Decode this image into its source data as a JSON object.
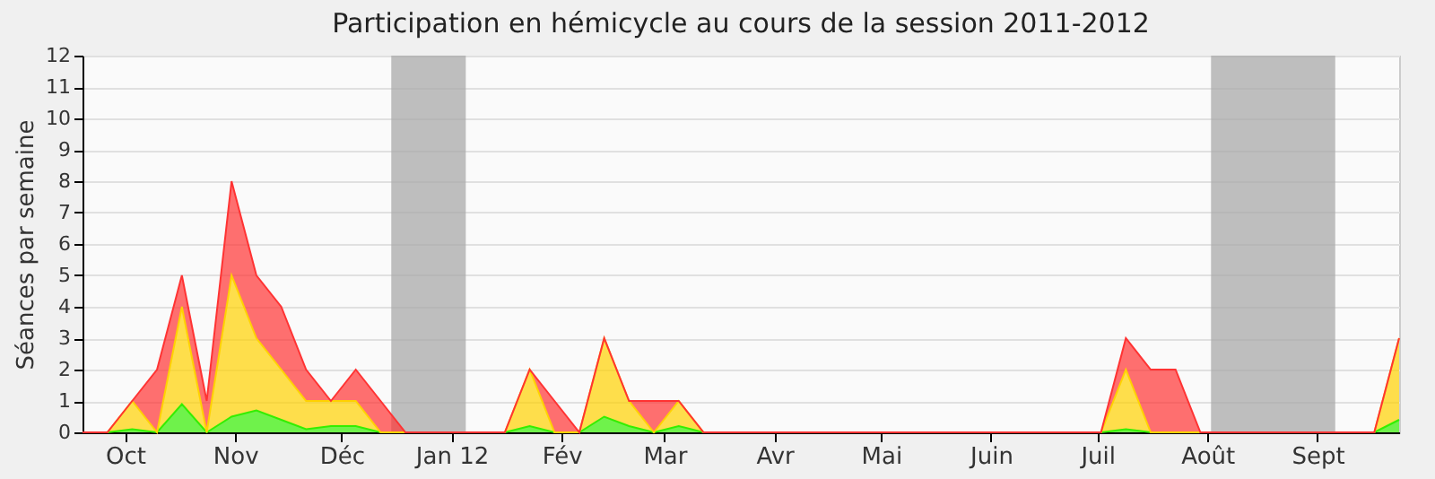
{
  "chart_data": {
    "type": "area",
    "title": "Participation en hémicycle au cours de la session 2011-2012",
    "ylabel": "Séances par semaine",
    "stacked": true,
    "grid": "y",
    "x": [
      "2011-09-19",
      "2011-09-26",
      "2011-10-03",
      "2011-10-10",
      "2011-10-17",
      "2011-10-24",
      "2011-10-31",
      "2011-11-07",
      "2011-11-14",
      "2011-11-21",
      "2011-11-28",
      "2011-12-05",
      "2011-12-12",
      "2011-12-19",
      "2011-12-26",
      "2012-01-02",
      "2012-01-09",
      "2012-01-16",
      "2012-01-23",
      "2012-01-30",
      "2012-02-06",
      "2012-02-13",
      "2012-02-20",
      "2012-02-27",
      "2012-03-05",
      "2012-03-12",
      "2012-03-19",
      "2012-03-26",
      "2012-04-02",
      "2012-04-09",
      "2012-04-16",
      "2012-04-23",
      "2012-04-30",
      "2012-05-07",
      "2012-05-14",
      "2012-05-21",
      "2012-05-28",
      "2012-06-04",
      "2012-06-11",
      "2012-06-18",
      "2012-06-25",
      "2012-07-02",
      "2012-07-09",
      "2012-07-16",
      "2012-07-23",
      "2012-07-30",
      "2012-08-06",
      "2012-08-13",
      "2012-08-20",
      "2012-08-27",
      "2012-09-03",
      "2012-09-10",
      "2012-09-17",
      "2012-09-24"
    ],
    "xlim": [
      "2011-09-19",
      "2012-09-24"
    ],
    "xticks": [
      {
        "value": "2011-10-01",
        "label": "Oct"
      },
      {
        "value": "2011-11-01",
        "label": "Nov"
      },
      {
        "value": "2011-12-01",
        "label": "Déc"
      },
      {
        "value": "2012-01-01",
        "label": "Jan 12"
      },
      {
        "value": "2012-02-01",
        "label": "Fév"
      },
      {
        "value": "2012-03-01",
        "label": "Mar"
      },
      {
        "value": "2012-04-01",
        "label": "Avr"
      },
      {
        "value": "2012-05-01",
        "label": "Mai"
      },
      {
        "value": "2012-06-01",
        "label": "Juin"
      },
      {
        "value": "2012-07-01",
        "label": "Juil"
      },
      {
        "value": "2012-08-01",
        "label": "Août"
      },
      {
        "value": "2012-09-01",
        "label": "Sept"
      }
    ],
    "ylim": [
      0,
      12
    ],
    "yticks": [
      0,
      1,
      2,
      3,
      4,
      5,
      6,
      7,
      8,
      9,
      10,
      11,
      12
    ],
    "bands": [
      {
        "axis": "x",
        "from": "2011-12-15",
        "to": "2012-01-05",
        "color": "#aaaaaa"
      },
      {
        "axis": "x",
        "from": "2012-08-02",
        "to": "2012-09-06",
        "color": "#aaaaaa"
      }
    ],
    "series": [
      {
        "color": "#33ee00",
        "values": [
          0,
          0,
          0.1,
          0,
          0.9,
          0,
          0.5,
          0.7,
          0.4,
          0.1,
          0.2,
          0.2,
          0,
          0,
          0,
          0,
          0,
          0,
          0.2,
          0,
          0,
          0.5,
          0.2,
          0,
          0.2,
          0,
          0,
          0,
          0,
          0,
          0,
          0,
          0,
          0,
          0,
          0,
          0,
          0,
          0,
          0,
          0,
          0,
          0.1,
          0,
          0,
          0,
          0,
          0,
          0,
          0,
          0,
          0,
          0,
          0.4
        ]
      },
      {
        "color": "#ffd200",
        "values": [
          0,
          0,
          0.9,
          0,
          3.1,
          0,
          4.5,
          2.3,
          1.6,
          0.9,
          0.8,
          0.8,
          0,
          0,
          0,
          0,
          0,
          0,
          1.8,
          0,
          0,
          2.5,
          0.8,
          0,
          0.8,
          0,
          0,
          0,
          0,
          0,
          0,
          0,
          0,
          0,
          0,
          0,
          0,
          0,
          0,
          0,
          0,
          0,
          1.9,
          0,
          0,
          0,
          0,
          0,
          0,
          0,
          0,
          0,
          0,
          2.6
        ]
      },
      {
        "color": "#ff3333",
        "values": [
          0,
          0,
          0,
          2,
          1,
          1,
          3,
          2,
          2,
          1,
          0,
          1,
          1,
          0,
          0,
          0,
          0,
          0,
          0,
          1,
          0,
          0,
          0,
          1,
          0,
          0,
          0,
          0,
          0,
          0,
          0,
          0,
          0,
          0,
          0,
          0,
          0,
          0,
          0,
          0,
          0,
          0,
          1,
          2,
          2,
          0,
          0,
          0,
          0,
          0,
          0,
          0,
          0,
          0
        ]
      }
    ]
  }
}
